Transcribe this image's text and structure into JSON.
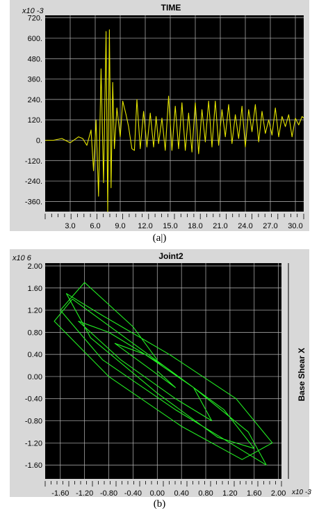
{
  "captions": {
    "a": "(a|)",
    "b": "(b)"
  },
  "chart_data": [
    {
      "type": "line",
      "title": "TIME",
      "y_multiplier": "x10 -3",
      "xlim": [
        0,
        31
      ],
      "ylim": [
        -420,
        735
      ],
      "x_ticks": [
        "3.0",
        "6.0",
        "9.0",
        "12.0",
        "15.0",
        "18.0",
        "21.0",
        "24.0",
        "27.0",
        "30.0"
      ],
      "y_ticks": [
        "720.",
        "600.",
        "480.",
        "360.",
        "240.",
        "120.",
        "0.",
        "-120.",
        "-240.",
        "-360."
      ],
      "grid": true,
      "series_color": "#e6e600",
      "series": [
        {
          "x": [
            0,
            1,
            2,
            3,
            4,
            4.5,
            5,
            5.5,
            5.8,
            6.1,
            6.4,
            6.7,
            7.0,
            7.3,
            7.5,
            7.7,
            7.9,
            8.1,
            8.3,
            8.6,
            9.0,
            9.3,
            9.7,
            10.0,
            10.4,
            10.7,
            11.0,
            11.4,
            11.8,
            12.2,
            12.6,
            13.0,
            13.3,
            13.6,
            14.0,
            14.4,
            14.8,
            15.2,
            15.6,
            16.0,
            16.4,
            16.8,
            17.2,
            17.6,
            18.0,
            18.4,
            18.8,
            19.2,
            19.6,
            20.0,
            20.4,
            20.8,
            21.2,
            21.6,
            22.0,
            22.4,
            22.8,
            23.2,
            23.6,
            24.0,
            24.4,
            24.8,
            25.2,
            25.6,
            26.0,
            26.4,
            26.8,
            27.2,
            27.6,
            28.0,
            28.4,
            28.8,
            29.2,
            29.6,
            30.0,
            30.4,
            30.8,
            31.0
          ],
          "y": [
            0,
            0,
            10,
            -15,
            20,
            10,
            -30,
            60,
            -180,
            120,
            -330,
            420,
            -250,
            640,
            -420,
            650,
            -280,
            340,
            -50,
            190,
            20,
            230,
            150,
            80,
            -50,
            -60,
            240,
            -50,
            170,
            -40,
            160,
            -40,
            140,
            -20,
            130,
            -60,
            260,
            -60,
            200,
            -50,
            220,
            -60,
            160,
            -70,
            220,
            -80,
            180,
            -10,
            230,
            -40,
            230,
            -30,
            180,
            20,
            210,
            -20,
            150,
            10,
            200,
            -40,
            180,
            50,
            210,
            -10,
            170,
            40,
            120,
            30,
            190,
            20,
            140,
            80,
            150,
            20,
            130,
            90,
            140,
            130
          ]
        }
      ]
    },
    {
      "type": "scatter",
      "title": "Joint2",
      "y_multiplier": "x10 6",
      "x_multiplier": "x10 -3",
      "ylabel": "Base Shear X",
      "xlim": [
        -1.85,
        2.05
      ],
      "ylim": [
        -1.85,
        2.05
      ],
      "x_ticks": [
        "-1.60",
        "-1.20",
        "-0.80",
        "-0.40",
        "0.00",
        "0.40",
        "0.80",
        "1.20",
        "1.60",
        "2.00"
      ],
      "y_ticks": [
        "2.00",
        "1.60",
        "1.20",
        "0.80",
        "0.40",
        "0.00",
        "-0.40",
        "-0.80",
        "-1.20",
        "-1.60"
      ],
      "grid": true,
      "series_color": "#22ee22",
      "series": [
        {
          "x": [
            0.0,
            -0.4,
            -1.2,
            -1.6,
            -0.9,
            0.3,
            1.2,
            1.8,
            1.5,
            0.6,
            -0.4,
            -1.4,
            -1.7,
            -0.8,
            0.4,
            1.4,
            1.9,
            1.3,
            0.2,
            -0.9,
            -1.5,
            -1.1,
            0.0,
            1.0,
            1.6,
            1.1,
            0.1,
            -0.8,
            -1.3,
            -0.6,
            0.3,
            0.9,
            0.6,
            -0.2,
            -0.7,
            -0.2,
            0.3,
            0.0
          ],
          "y": [
            0.3,
            0.9,
            1.7,
            1.2,
            0.3,
            -0.6,
            -1.2,
            -1.6,
            -1.0,
            -0.2,
            0.6,
            1.4,
            1.0,
            0.0,
            -0.9,
            -1.5,
            -1.2,
            -0.4,
            0.4,
            1.1,
            1.5,
            0.7,
            -0.3,
            -1.1,
            -1.3,
            -0.6,
            0.2,
            0.8,
            1.0,
            0.3,
            -0.4,
            -0.8,
            -0.2,
            0.4,
            0.6,
            0.2,
            -0.2,
            0.1
          ]
        }
      ]
    }
  ]
}
